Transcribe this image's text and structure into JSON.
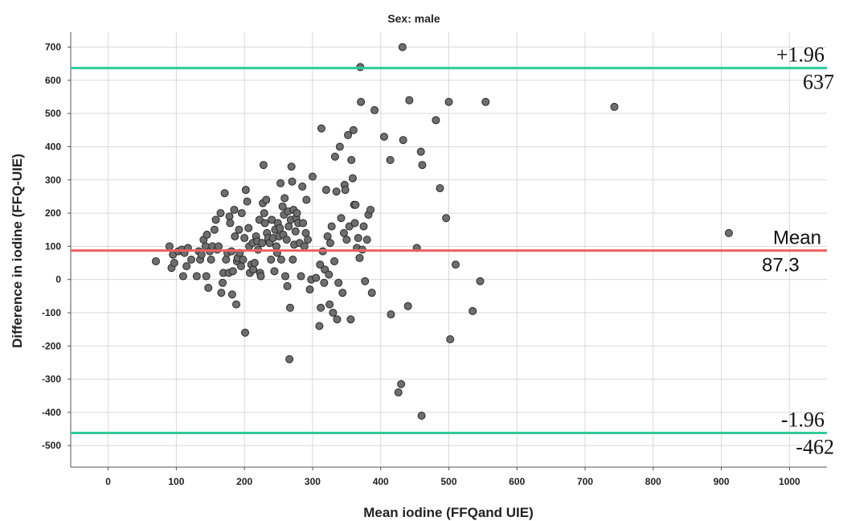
{
  "chart_data": {
    "type": "scatter",
    "title": "Sex: male",
    "xlabel": "Mean iodine (FFQand UIE)",
    "ylabel": "Difference in iodine (FFQ-UIE)",
    "xlim": [
      -55,
      1055
    ],
    "ylim": [
      -565,
      745
    ],
    "xticks": [
      0,
      100,
      200,
      300,
      400,
      500,
      600,
      700,
      800,
      900,
      1000
    ],
    "yticks": [
      -500,
      -400,
      -300,
      -200,
      -100,
      0,
      100,
      200,
      300,
      400,
      500,
      600,
      700
    ],
    "grid": true,
    "reference_lines": [
      {
        "label_top": "+1.96",
        "label_bottom": "637",
        "y": 637,
        "color": "#2ecc9a"
      },
      {
        "label_top": "Mean",
        "label_bottom": "87.3",
        "y": 87.3,
        "color": "#f06060"
      },
      {
        "label_top": "-1.96",
        "label_bottom": "-462",
        "y": -462,
        "color": "#2ecc9a"
      }
    ],
    "point_color": "#6e6e6e",
    "points": [
      [
        70,
        55
      ],
      [
        90,
        100
      ],
      [
        93,
        35
      ],
      [
        95,
        75
      ],
      [
        97,
        50
      ],
      [
        103,
        85
      ],
      [
        108,
        90
      ],
      [
        110,
        10
      ],
      [
        112,
        80
      ],
      [
        115,
        40
      ],
      [
        117,
        95
      ],
      [
        122,
        60
      ],
      [
        130,
        10
      ],
      [
        133,
        85
      ],
      [
        135,
        60
      ],
      [
        137,
        75
      ],
      [
        140,
        120
      ],
      [
        143,
        100
      ],
      [
        144,
        10
      ],
      [
        145,
        135
      ],
      [
        147,
        -25
      ],
      [
        149,
        85
      ],
      [
        151,
        60
      ],
      [
        153,
        100
      ],
      [
        156,
        150
      ],
      [
        158,
        180
      ],
      [
        160,
        90
      ],
      [
        162,
        100
      ],
      [
        165,
        200
      ],
      [
        166,
        -40
      ],
      [
        168,
        -10
      ],
      [
        169,
        20
      ],
      [
        171,
        260
      ],
      [
        173,
        60
      ],
      [
        175,
        80
      ],
      [
        177,
        20
      ],
      [
        178,
        190
      ],
      [
        179,
        170
      ],
      [
        181,
        85
      ],
      [
        182,
        -45
      ],
      [
        183,
        25
      ],
      [
        185,
        210
      ],
      [
        186,
        130
      ],
      [
        188,
        -75
      ],
      [
        189,
        55
      ],
      [
        190,
        65
      ],
      [
        192,
        150
      ],
      [
        193,
        80
      ],
      [
        195,
        40
      ],
      [
        196,
        200
      ],
      [
        198,
        60
      ],
      [
        200,
        125
      ],
      [
        201,
        -160
      ],
      [
        202,
        270
      ],
      [
        204,
        235
      ],
      [
        206,
        155
      ],
      [
        207,
        100
      ],
      [
        208,
        20
      ],
      [
        210,
        45
      ],
      [
        212,
        110
      ],
      [
        213,
        30
      ],
      [
        215,
        50
      ],
      [
        217,
        130
      ],
      [
        219,
        115
      ],
      [
        220,
        90
      ],
      [
        222,
        180
      ],
      [
        223,
        20
      ],
      [
        224,
        10
      ],
      [
        226,
        110
      ],
      [
        227,
        230
      ],
      [
        228,
        345
      ],
      [
        229,
        200
      ],
      [
        230,
        170
      ],
      [
        232,
        240
      ],
      [
        233,
        140
      ],
      [
        235,
        125
      ],
      [
        237,
        110
      ],
      [
        239,
        60
      ],
      [
        240,
        180
      ],
      [
        242,
        125
      ],
      [
        244,
        25
      ],
      [
        245,
        150
      ],
      [
        247,
        100
      ],
      [
        248,
        80
      ],
      [
        249,
        170
      ],
      [
        251,
        130
      ],
      [
        252,
        155
      ],
      [
        253,
        290
      ],
      [
        254,
        60
      ],
      [
        256,
        220
      ],
      [
        257,
        135
      ],
      [
        258,
        195
      ],
      [
        259,
        245
      ],
      [
        260,
        10
      ],
      [
        262,
        120
      ],
      [
        263,
        -20
      ],
      [
        264,
        205
      ],
      [
        265,
        160
      ],
      [
        266,
        -240
      ],
      [
        267,
        -85
      ],
      [
        268,
        180
      ],
      [
        269,
        340
      ],
      [
        270,
        295
      ],
      [
        271,
        60
      ],
      [
        272,
        210
      ],
      [
        273,
        105
      ],
      [
        275,
        145
      ],
      [
        276,
        185
      ],
      [
        277,
        200
      ],
      [
        279,
        170
      ],
      [
        281,
        110
      ],
      [
        283,
        10
      ],
      [
        285,
        280
      ],
      [
        286,
        170
      ],
      [
        288,
        100
      ],
      [
        290,
        140
      ],
      [
        291,
        240
      ],
      [
        293,
        120
      ],
      [
        296,
        -30
      ],
      [
        298,
        0
      ],
      [
        300,
        310
      ],
      [
        305,
        5
      ],
      [
        310,
        -140
      ],
      [
        311,
        45
      ],
      [
        312,
        -85
      ],
      [
        313,
        455
      ],
      [
        315,
        85
      ],
      [
        317,
        -10
      ],
      [
        318,
        30
      ],
      [
        320,
        270
      ],
      [
        322,
        130
      ],
      [
        324,
        15
      ],
      [
        325,
        -75
      ],
      [
        326,
        110
      ],
      [
        328,
        160
      ],
      [
        330,
        -100
      ],
      [
        332,
        55
      ],
      [
        333,
        370
      ],
      [
        335,
        265
      ],
      [
        336,
        -120
      ],
      [
        338,
        -10
      ],
      [
        340,
        400
      ],
      [
        342,
        185
      ],
      [
        344,
        -40
      ],
      [
        346,
        140
      ],
      [
        347,
        285
      ],
      [
        348,
        270
      ],
      [
        350,
        120
      ],
      [
        352,
        435
      ],
      [
        354,
        160
      ],
      [
        356,
        -120
      ],
      [
        357,
        360
      ],
      [
        359,
        305
      ],
      [
        360,
        450
      ],
      [
        361,
        225
      ],
      [
        362,
        170
      ],
      [
        363,
        225
      ],
      [
        365,
        95
      ],
      [
        367,
        125
      ],
      [
        369,
        65
      ],
      [
        370,
        640
      ],
      [
        371,
        535
      ],
      [
        373,
        90
      ],
      [
        375,
        160
      ],
      [
        377,
        -5
      ],
      [
        380,
        120
      ],
      [
        382,
        195
      ],
      [
        385,
        210
      ],
      [
        387,
        -40
      ],
      [
        391,
        510
      ],
      [
        405,
        430
      ],
      [
        414,
        360
      ],
      [
        415,
        -105
      ],
      [
        426,
        -340
      ],
      [
        430,
        -315
      ],
      [
        432,
        700
      ],
      [
        433,
        420
      ],
      [
        440,
        -80
      ],
      [
        442,
        540
      ],
      [
        453,
        95
      ],
      [
        459,
        385
      ],
      [
        460,
        -410
      ],
      [
        461,
        345
      ],
      [
        481,
        480
      ],
      [
        487,
        275
      ],
      [
        496,
        185
      ],
      [
        500,
        535
      ],
      [
        502,
        -180
      ],
      [
        510,
        45
      ],
      [
        535,
        -95
      ],
      [
        546,
        -5
      ],
      [
        554,
        535
      ],
      [
        743,
        520
      ],
      [
        911,
        140
      ]
    ]
  }
}
